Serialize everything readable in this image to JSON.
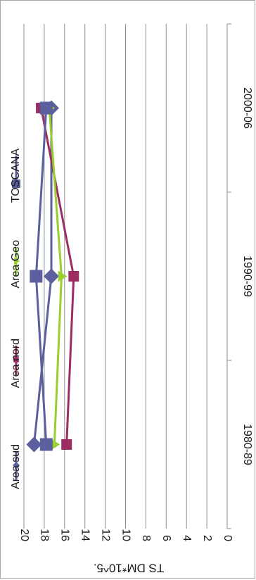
{
  "chart_data": {
    "type": "line",
    "title": "",
    "xlabel": "",
    "ylabel": "TS DM*10^5.",
    "categories": [
      "1980-89",
      "1990-99",
      "2000-06"
    ],
    "ylim": [
      0,
      20
    ],
    "yticks": [
      0,
      2,
      4,
      6,
      8,
      10,
      12,
      14,
      16,
      18,
      20
    ],
    "grid": true,
    "legend_position": "right",
    "orientation": "rotated-90-clockwise",
    "series": [
      {
        "name": "Area sud",
        "values": [
          19,
          17.3,
          17.3
        ],
        "color": "#5b5f9e",
        "marker": "diamond"
      },
      {
        "name": "Area nord",
        "values": [
          15.8,
          15.1,
          18.3
        ],
        "color": "#9b2d63",
        "marker": "square"
      },
      {
        "name": "Area Geo",
        "values": [
          17,
          16.3,
          17.5
        ],
        "color": "#9acd2f",
        "marker": "triangle"
      },
      {
        "name": "TOSCANA",
        "values": [
          17.8,
          18.8,
          17.8
        ],
        "color": "#5b5f9e",
        "marker": "square"
      }
    ]
  }
}
